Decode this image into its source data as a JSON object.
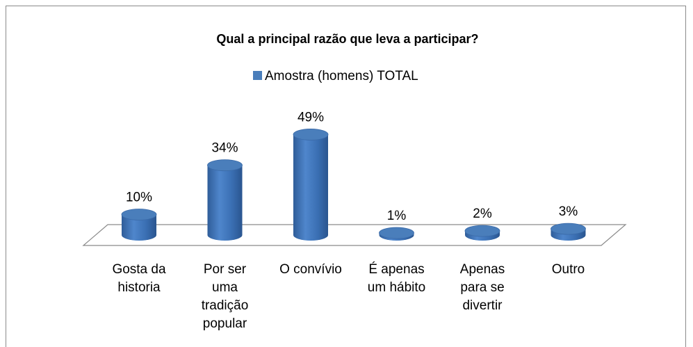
{
  "chart_data": {
    "type": "bar",
    "title": "Qual a principal razão que  leva a participar?",
    "categories": [
      "Gosta da historia",
      "Por ser uma tradição popular",
      "O convívio",
      "É apenas um hábito",
      "Apenas para se divertir",
      "Outro"
    ],
    "series": [
      {
        "name": "Amostra (homens) TOTAL",
        "color": "#4a7ebb",
        "values": [
          10,
          34,
          49,
          1,
          2,
          3
        ],
        "value_labels": [
          "10%",
          "34%",
          "49%",
          "1%",
          "2%",
          "3%"
        ]
      }
    ]
  }
}
